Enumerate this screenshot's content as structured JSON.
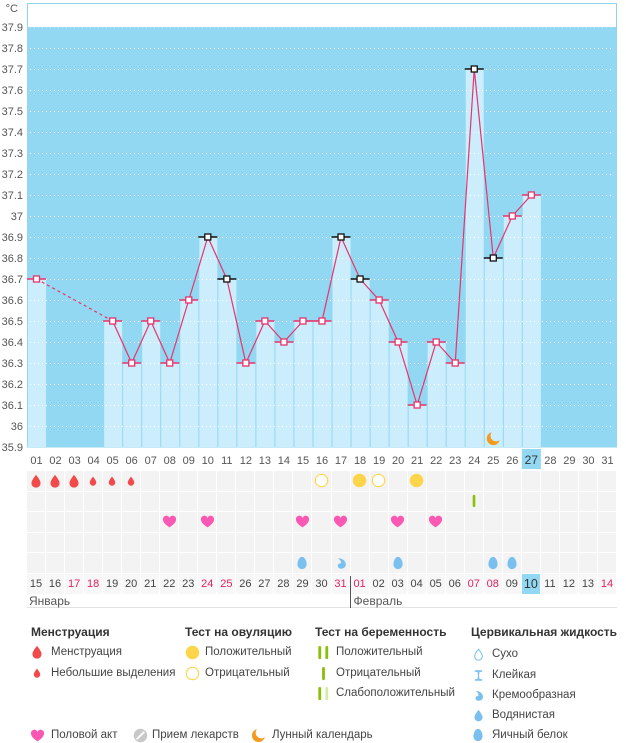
{
  "chart_data": {
    "type": "bar",
    "title": "",
    "xlabel": "",
    "ylabel": "°C",
    "ylim": [
      35.9,
      37.9
    ],
    "yticks": [
      "37.9",
      "37.8",
      "37.7",
      "37.6",
      "37.5",
      "37.4",
      "37.3",
      "37.2",
      "37.1",
      "37",
      "36.9",
      "36.8",
      "36.7",
      "36.6",
      "36.5",
      "36.4",
      "36.3",
      "36.2",
      "36.1",
      "36",
      "35.9"
    ],
    "categories": [
      "01",
      "02",
      "03",
      "04",
      "05",
      "06",
      "07",
      "08",
      "09",
      "10",
      "11",
      "12",
      "13",
      "14",
      "15",
      "16",
      "17",
      "18",
      "19",
      "20",
      "21",
      "22",
      "23",
      "24",
      "25",
      "26",
      "27",
      "28",
      "29",
      "30",
      "31"
    ],
    "values": [
      36.7,
      null,
      null,
      null,
      36.5,
      36.3,
      36.5,
      36.3,
      36.6,
      36.9,
      36.7,
      36.3,
      36.5,
      36.4,
      36.5,
      36.5,
      36.9,
      36.7,
      36.6,
      36.4,
      36.1,
      36.4,
      36.3,
      37.7,
      36.8,
      37.0,
      37.1,
      null,
      null,
      null,
      null
    ],
    "flagged_days": [
      "10",
      "11",
      "17",
      "18",
      "24",
      "25"
    ],
    "current_day": "27",
    "moon_day": "25",
    "grid": true,
    "colors": {
      "plot_background": "#93d8f3",
      "bar": "#cbedfc",
      "frame": "#8fd4ef",
      "line": "#e8336b",
      "flagged": "#111111"
    }
  },
  "calendar": {
    "dates": [
      {
        "label": "15",
        "weekend": false
      },
      {
        "label": "16",
        "weekend": false
      },
      {
        "label": "17",
        "weekend": true
      },
      {
        "label": "18",
        "weekend": true
      },
      {
        "label": "19",
        "weekend": false
      },
      {
        "label": "20",
        "weekend": false
      },
      {
        "label": "21",
        "weekend": false
      },
      {
        "label": "22",
        "weekend": false
      },
      {
        "label": "23",
        "weekend": false
      },
      {
        "label": "24",
        "weekend": true
      },
      {
        "label": "25",
        "weekend": true
      },
      {
        "label": "26",
        "weekend": false
      },
      {
        "label": "27",
        "weekend": false
      },
      {
        "label": "28",
        "weekend": false
      },
      {
        "label": "29",
        "weekend": false
      },
      {
        "label": "30",
        "weekend": false
      },
      {
        "label": "31",
        "weekend": true
      },
      {
        "label": "01",
        "weekend": true
      },
      {
        "label": "02",
        "weekend": false
      },
      {
        "label": "03",
        "weekend": false
      },
      {
        "label": "04",
        "weekend": false
      },
      {
        "label": "05",
        "weekend": false
      },
      {
        "label": "06",
        "weekend": false
      },
      {
        "label": "07",
        "weekend": true
      },
      {
        "label": "08",
        "weekend": true
      },
      {
        "label": "09",
        "weekend": false
      },
      {
        "label": "10",
        "weekend": false
      },
      {
        "label": "11",
        "weekend": false
      },
      {
        "label": "12",
        "weekend": false
      },
      {
        "label": "13",
        "weekend": false
      },
      {
        "label": "14",
        "weekend": true
      }
    ],
    "current_date": "10",
    "months": [
      {
        "label": "Январь",
        "start_day": "01"
      },
      {
        "label": "Февраль",
        "start_day": "18"
      }
    ]
  },
  "day_markers": {
    "menstruation": [
      {
        "day": "01",
        "type": "menstruation"
      },
      {
        "day": "02",
        "type": "menstruation"
      },
      {
        "day": "03",
        "type": "menstruation"
      },
      {
        "day": "04",
        "type": "spotting"
      },
      {
        "day": "05",
        "type": "spotting"
      },
      {
        "day": "06",
        "type": "spotting"
      }
    ],
    "ovulation_test": [
      {
        "day": "16",
        "result": "negative"
      },
      {
        "day": "18",
        "result": "positive"
      },
      {
        "day": "19",
        "result": "negative"
      },
      {
        "day": "21",
        "result": "positive"
      }
    ],
    "pregnancy_test": [
      {
        "day": "24",
        "result": "negative"
      }
    ],
    "intercourse": [
      "08",
      "10",
      "15",
      "17",
      "20",
      "22"
    ],
    "medication": [],
    "cervical_fluid": [
      {
        "day": "15",
        "type": "egg-white"
      },
      {
        "day": "17",
        "type": "creamy"
      },
      {
        "day": "20",
        "type": "egg-white"
      },
      {
        "day": "25",
        "type": "egg-white"
      },
      {
        "day": "26",
        "type": "egg-white"
      }
    ]
  },
  "legend": {
    "menstruation": {
      "title": "Менструация",
      "items": [
        {
          "label": "Менструация",
          "icon": "drop-large"
        },
        {
          "label": "Небольшие выделения",
          "icon": "drop-small"
        }
      ]
    },
    "ovulation_test": {
      "title": "Тест на овуляцию",
      "items": [
        {
          "label": "Положительный",
          "icon": "ovu-positive"
        },
        {
          "label": "Отрицательный",
          "icon": "ovu-negative"
        }
      ]
    },
    "pregnancy_test": {
      "title": "Тест на беременность",
      "items": [
        {
          "label": "Положительный",
          "icon": "preg-positive"
        },
        {
          "label": "Отрицательный",
          "icon": "preg-negative"
        },
        {
          "label": "Слабоположительный",
          "icon": "preg-weak"
        }
      ]
    },
    "cervical_fluid": {
      "title": "Цервикальная жидкость",
      "items": [
        {
          "label": "Сухо",
          "icon": "fluid-dry"
        },
        {
          "label": "Клейкая",
          "icon": "fluid-sticky"
        },
        {
          "label": "Кремообразная",
          "icon": "fluid-creamy"
        },
        {
          "label": "Водянистая",
          "icon": "fluid-watery"
        },
        {
          "label": "Яичный белок",
          "icon": "fluid-egg-white"
        }
      ]
    },
    "other": [
      {
        "label": "Половой акт",
        "icon": "heart"
      },
      {
        "label": "Прием лекарств",
        "icon": "medication"
      },
      {
        "label": "Лунный календарь",
        "icon": "moon"
      }
    ]
  },
  "colors": {
    "weekend": "#e0245e",
    "menstruation": "#f24a4a",
    "ovulation": "#fdd54a",
    "pregnancy": "#8cbe0c",
    "pregnancy_weak": "#d7e9a7",
    "intercourse": "#fb58b3",
    "cervical_fluid": "#79c0ee",
    "medication": "#c8c8c8",
    "moon": "#f39b1f"
  }
}
